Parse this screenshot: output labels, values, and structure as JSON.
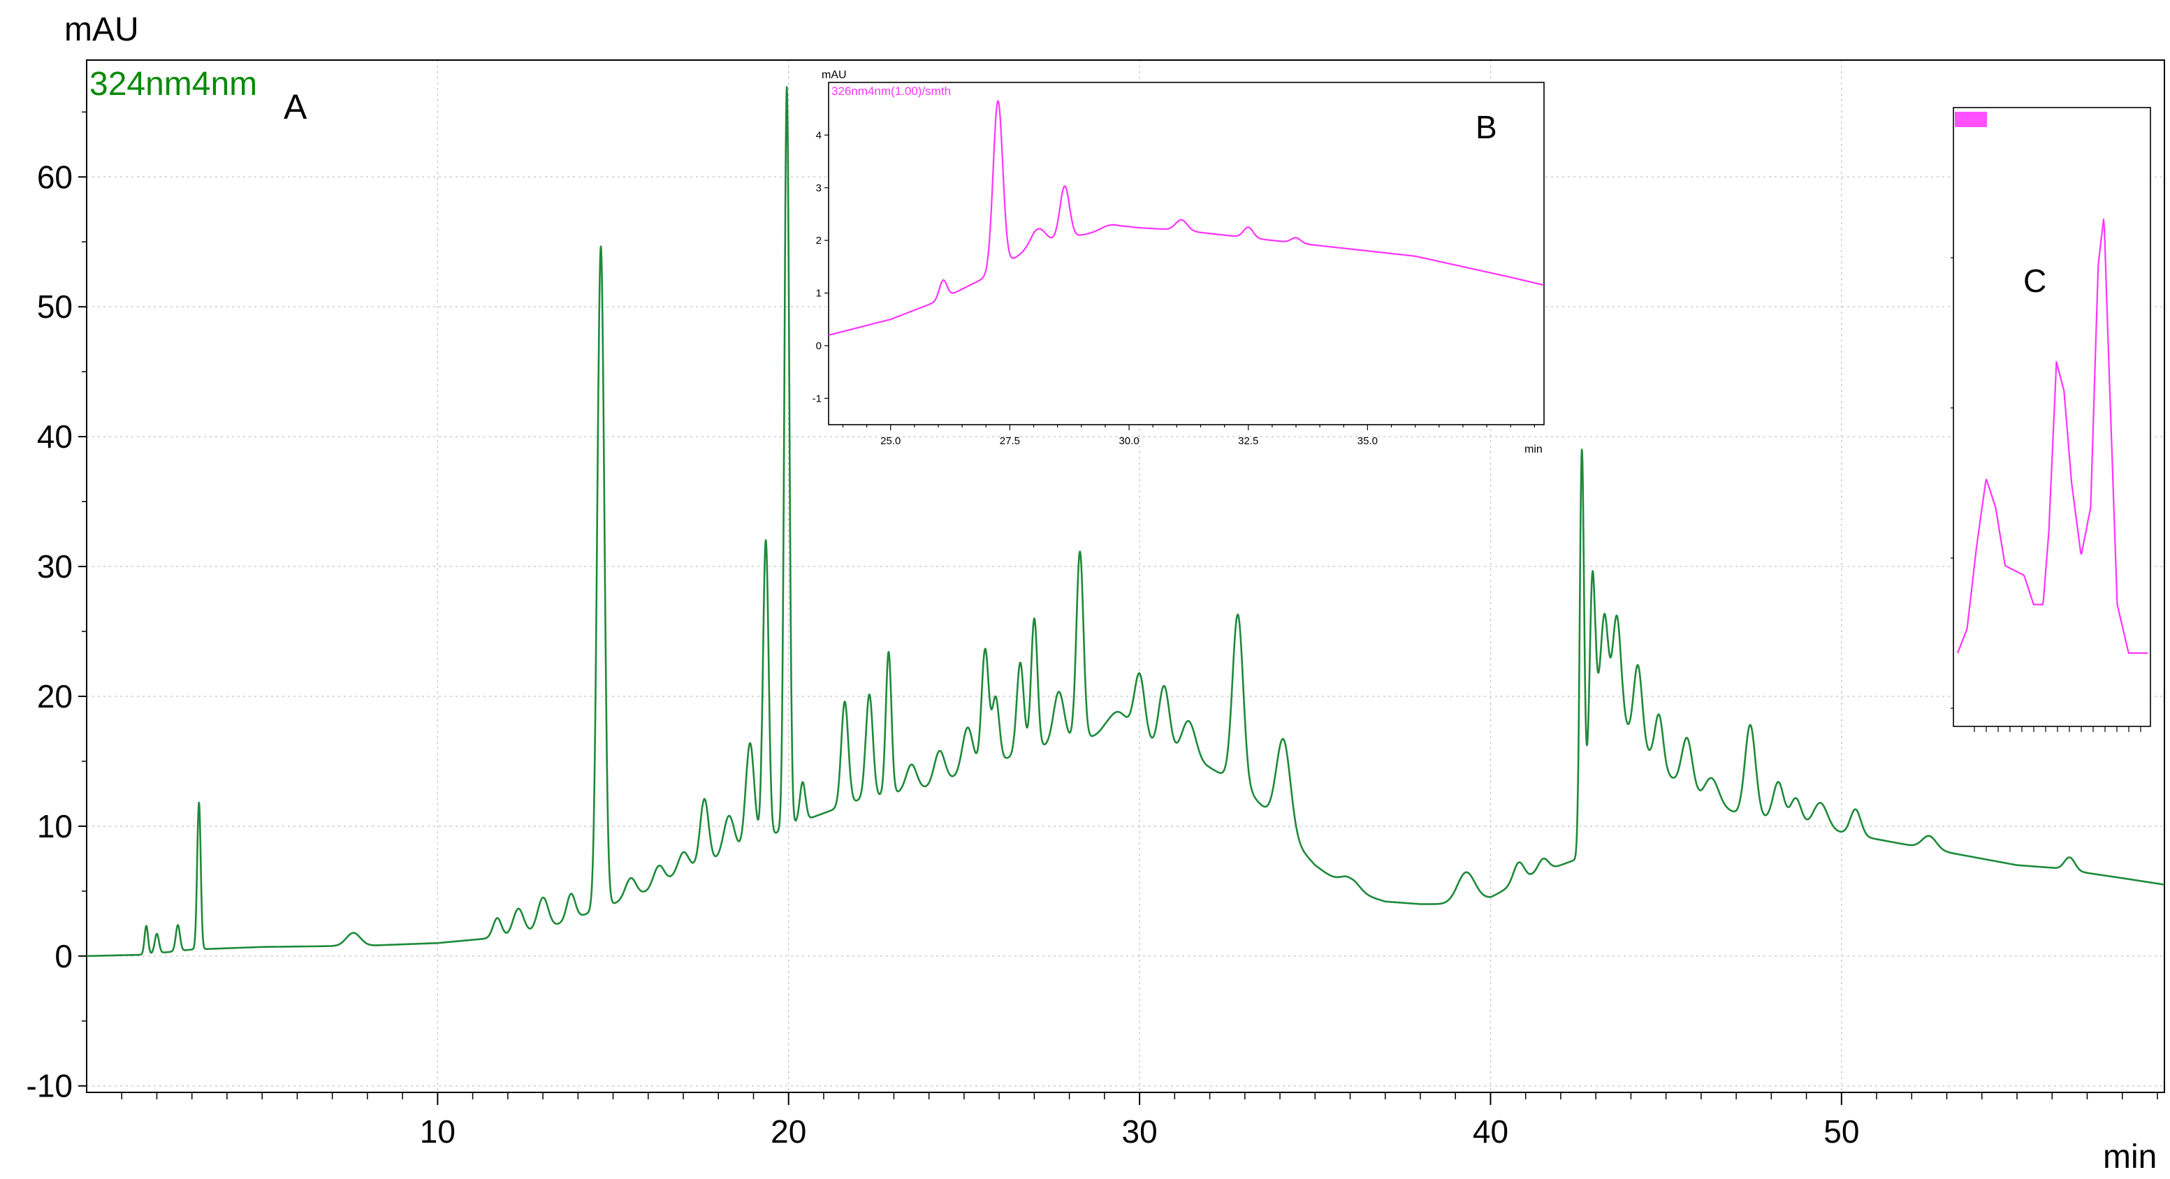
{
  "panels": {
    "a": {
      "letter": "A",
      "channel_label": "324nm4nm"
    },
    "b": {
      "letter": "B",
      "channel_label": "326nm4nm(1.00)/smth"
    },
    "c": {
      "letter": "C"
    }
  },
  "colors": {
    "main_trace": "#1e8a3a",
    "inset_trace": "#ff33ff",
    "channel_label_main": "#0a8a0a",
    "channel_label_inset": "#ff33ff"
  },
  "chart_data": [
    {
      "id": "main",
      "type": "line",
      "ylabel": "mAU",
      "xlabel": "min",
      "xlim": [
        0,
        59.2
      ],
      "ylim": [
        -10.5,
        69
      ],
      "xticks": [
        10,
        20,
        30,
        40,
        50
      ],
      "yticks": [
        -10,
        0,
        10,
        20,
        30,
        40,
        50,
        60
      ],
      "grid": true,
      "series": [
        {
          "baseline": [
            [
              0,
              0
            ],
            [
              1.6,
              0.1
            ],
            [
              3,
              0.5
            ],
            [
              5,
              0.7
            ],
            [
              8,
              0.8
            ],
            [
              10,
              1
            ],
            [
              12,
              1.5
            ],
            [
              13,
              2
            ],
            [
              14,
              3
            ],
            [
              15,
              4
            ],
            [
              16,
              5
            ],
            [
              17,
              6.5
            ],
            [
              18,
              7.5
            ],
            [
              19,
              8.5
            ],
            [
              20,
              10
            ],
            [
              21,
              11
            ],
            [
              22,
              12
            ],
            [
              23,
              12.5
            ],
            [
              24,
              13
            ],
            [
              25,
              14
            ],
            [
              26,
              15
            ],
            [
              27,
              16
            ],
            [
              28,
              16.5
            ],
            [
              29,
              17
            ],
            [
              30,
              16.5
            ],
            [
              31,
              15.5
            ],
            [
              32,
              14.5
            ],
            [
              33,
              13
            ],
            [
              34,
              10
            ],
            [
              35,
              7
            ],
            [
              36,
              5
            ],
            [
              37,
              4.2
            ],
            [
              38,
              4
            ],
            [
              39,
              4
            ],
            [
              40,
              4.5
            ],
            [
              41,
              6
            ],
            [
              42,
              7
            ],
            [
              42.5,
              7.5
            ],
            [
              43,
              20
            ],
            [
              44,
              17
            ],
            [
              45,
              14
            ],
            [
              46,
              12
            ],
            [
              47,
              11
            ],
            [
              48,
              10.5
            ],
            [
              49,
              10
            ],
            [
              50,
              9.5
            ],
            [
              51,
              9
            ],
            [
              52,
              8.5
            ],
            [
              53,
              8
            ],
            [
              54,
              7.5
            ],
            [
              55,
              7
            ],
            [
              56,
              6.8
            ],
            [
              57,
              6.4
            ],
            [
              58,
              6
            ],
            [
              59.2,
              5.5
            ]
          ],
          "peaks": [
            [
              1.7,
              2.2,
              0.05
            ],
            [
              2.0,
              1.5,
              0.06
            ],
            [
              2.6,
              2,
              0.06
            ],
            [
              3.2,
              11.3,
              0.05
            ],
            [
              7.6,
              1,
              0.2
            ],
            [
              11.7,
              1.5,
              0.12
            ],
            [
              12.3,
              2,
              0.15
            ],
            [
              13,
              2.5,
              0.15
            ],
            [
              13.8,
              2,
              0.12
            ],
            [
              14.65,
              51,
              0.1
            ],
            [
              15.5,
              1.5,
              0.15
            ],
            [
              16.3,
              1.5,
              0.15
            ],
            [
              17,
              1.5,
              0.15
            ],
            [
              17.6,
              5,
              0.12
            ],
            [
              18.3,
              3,
              0.15
            ],
            [
              18.9,
              8,
              0.12
            ],
            [
              19.35,
              23,
              0.08
            ],
            [
              19.95,
              57,
              0.07
            ],
            [
              20.4,
              3,
              0.08
            ],
            [
              21.6,
              8,
              0.1
            ],
            [
              22.3,
              8,
              0.1
            ],
            [
              22.85,
              11,
              0.08
            ],
            [
              23.5,
              2,
              0.15
            ],
            [
              24.3,
              2.5,
              0.15
            ],
            [
              25.1,
              3.5,
              0.15
            ],
            [
              25.6,
              9,
              0.1
            ],
            [
              25.9,
              5,
              0.1
            ],
            [
              26.6,
              7,
              0.1
            ],
            [
              27.0,
              10,
              0.09
            ],
            [
              27.7,
              4,
              0.15
            ],
            [
              28.3,
              14.5,
              0.1
            ],
            [
              29.4,
              2,
              0.3
            ],
            [
              30.0,
              5,
              0.15
            ],
            [
              30.7,
              5,
              0.15
            ],
            [
              31.4,
              3,
              0.2
            ],
            [
              32.8,
              13,
              0.15
            ],
            [
              34.1,
              7,
              0.2
            ],
            [
              36.0,
              1,
              0.25
            ],
            [
              39.3,
              2.3,
              0.25
            ],
            [
              40.8,
              1.5,
              0.15
            ],
            [
              41.5,
              1,
              0.15
            ],
            [
              42.6,
              29,
              0.06
            ],
            [
              42.9,
              12,
              0.07
            ],
            [
              43.25,
              7,
              0.1
            ],
            [
              43.6,
              8,
              0.12
            ],
            [
              44.2,
              6,
              0.12
            ],
            [
              44.8,
              4,
              0.12
            ],
            [
              45.6,
              4,
              0.15
            ],
            [
              46.3,
              2,
              0.2
            ],
            [
              47.4,
              7,
              0.15
            ],
            [
              48.2,
              3,
              0.15
            ],
            [
              48.7,
              2,
              0.15
            ],
            [
              49.4,
              2,
              0.2
            ],
            [
              50.4,
              2,
              0.15
            ],
            [
              52.5,
              1,
              0.2
            ],
            [
              56.5,
              1,
              0.15
            ]
          ]
        }
      ]
    },
    {
      "id": "inset-b",
      "type": "line",
      "ylabel": "mAU",
      "xlabel": "min",
      "xlim": [
        23.7,
        38.7
      ],
      "ylim": [
        -1.5,
        5.0
      ],
      "xticks": [
        25.0,
        27.5,
        30.0,
        32.5,
        35.0
      ],
      "xtick_labels": [
        "25.0",
        "27.5",
        "30.0",
        "32.5",
        "35.0"
      ],
      "yticks": [
        -1,
        0,
        1,
        2,
        3,
        4
      ],
      "series": [
        {
          "baseline": [
            [
              23.7,
              0.2
            ],
            [
              25,
              0.5
            ],
            [
              26,
              0.85
            ],
            [
              27,
              1.3
            ],
            [
              28,
              1.9
            ],
            [
              29,
              2.1
            ],
            [
              30,
              2.25
            ],
            [
              31,
              2.2
            ],
            [
              32,
              2.1
            ],
            [
              33,
              2.0
            ],
            [
              34,
              1.9
            ],
            [
              35,
              1.8
            ],
            [
              36,
              1.7
            ],
            [
              37,
              1.5
            ],
            [
              38,
              1.3
            ],
            [
              38.7,
              1.15
            ]
          ],
          "peaks": [
            [
              26.1,
              0.35,
              0.08
            ],
            [
              27.25,
              3.2,
              0.1
            ],
            [
              28.1,
              0.3,
              0.15
            ],
            [
              28.65,
              1.0,
              0.1
            ],
            [
              29.6,
              0.1,
              0.2
            ],
            [
              31.1,
              0.2,
              0.12
            ],
            [
              32.5,
              0.2,
              0.1
            ],
            [
              33.5,
              0.1,
              0.1
            ]
          ]
        }
      ]
    },
    {
      "id": "inset-c",
      "type": "line",
      "series": [
        {
          "profile": [
            [
              0,
              0.0
            ],
            [
              0.05,
              0.05
            ],
            [
              0.1,
              0.22
            ],
            [
              0.15,
              0.36
            ],
            [
              0.2,
              0.3
            ],
            [
              0.25,
              0.18
            ],
            [
              0.3,
              0.17
            ],
            [
              0.35,
              0.16
            ],
            [
              0.4,
              0.1
            ],
            [
              0.45,
              0.1
            ],
            [
              0.48,
              0.25
            ],
            [
              0.52,
              0.6
            ],
            [
              0.56,
              0.54
            ],
            [
              0.6,
              0.35
            ],
            [
              0.65,
              0.2
            ],
            [
              0.7,
              0.3
            ],
            [
              0.74,
              0.8
            ],
            [
              0.77,
              0.9
            ],
            [
              0.8,
              0.55
            ],
            [
              0.84,
              0.1
            ],
            [
              0.9,
              0.0
            ],
            [
              1.0,
              0.0
            ]
          ]
        }
      ]
    }
  ]
}
